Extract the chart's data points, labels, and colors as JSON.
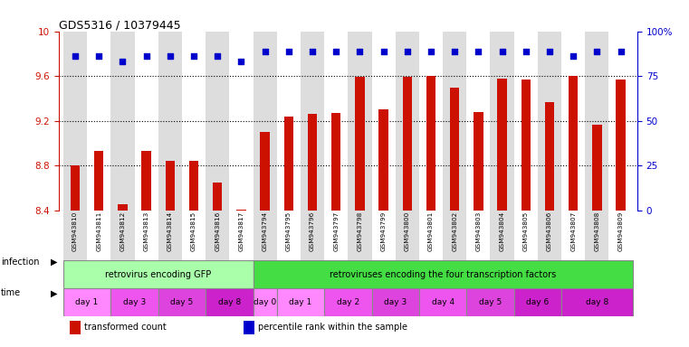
{
  "title": "GDS5316 / 10379445",
  "samples": [
    "GSM943810",
    "GSM943811",
    "GSM943812",
    "GSM943813",
    "GSM943814",
    "GSM943815",
    "GSM943816",
    "GSM943817",
    "GSM943794",
    "GSM943795",
    "GSM943796",
    "GSM943797",
    "GSM943798",
    "GSM943799",
    "GSM943800",
    "GSM943801",
    "GSM943802",
    "GSM943803",
    "GSM943804",
    "GSM943805",
    "GSM943806",
    "GSM943807",
    "GSM943808",
    "GSM943809"
  ],
  "transformed_count": [
    8.8,
    8.93,
    8.46,
    8.93,
    8.84,
    8.84,
    8.65,
    8.41,
    9.1,
    9.24,
    9.26,
    9.27,
    9.59,
    9.3,
    9.59,
    9.6,
    9.5,
    9.28,
    9.58,
    9.57,
    9.37,
    9.6,
    9.17,
    9.57
  ],
  "percentile_left_y": [
    9.78,
    9.78,
    9.73,
    9.78,
    9.78,
    9.78,
    9.78,
    9.73,
    9.82,
    9.82,
    9.82,
    9.82,
    9.82,
    9.82,
    9.82,
    9.82,
    9.82,
    9.82,
    9.82,
    9.82,
    9.82,
    9.78,
    9.82,
    9.82
  ],
  "ylim_left": [
    8.4,
    10.0
  ],
  "ylim_right": [
    0,
    100
  ],
  "yticks_left": [
    8.4,
    8.8,
    9.2,
    9.6,
    10.0
  ],
  "ytick_labels_left": [
    "8.4",
    "8.8",
    "9.2",
    "9.6",
    "10"
  ],
  "yticks_right": [
    0,
    25,
    50,
    75,
    100
  ],
  "ytick_labels_right": [
    "0",
    "25",
    "50",
    "75",
    "100%"
  ],
  "bar_color": "#cc1100",
  "dot_color": "#0000cc",
  "bg_color": "#ffffff",
  "grid_lines": [
    8.8,
    9.2,
    9.6
  ],
  "infection_groups": [
    {
      "label": "retrovirus encoding GFP",
      "start": 0,
      "end": 8,
      "color": "#aaffaa"
    },
    {
      "label": "retroviruses encoding the four transcription factors",
      "start": 8,
      "end": 24,
      "color": "#44dd44"
    }
  ],
  "time_groups": [
    {
      "label": "day 1",
      "start": 0,
      "end": 2,
      "color": "#ff88ff"
    },
    {
      "label": "day 3",
      "start": 2,
      "end": 4,
      "color": "#ee55ee"
    },
    {
      "label": "day 5",
      "start": 4,
      "end": 6,
      "color": "#dd44dd"
    },
    {
      "label": "day 8",
      "start": 6,
      "end": 8,
      "color": "#cc22cc"
    },
    {
      "label": "day 0",
      "start": 8,
      "end": 9,
      "color": "#ff88ff"
    },
    {
      "label": "day 1",
      "start": 9,
      "end": 11,
      "color": "#ff88ff"
    },
    {
      "label": "day 2",
      "start": 11,
      "end": 13,
      "color": "#ee55ee"
    },
    {
      "label": "day 3",
      "start": 13,
      "end": 15,
      "color": "#dd44dd"
    },
    {
      "label": "day 4",
      "start": 15,
      "end": 17,
      "color": "#ee55ee"
    },
    {
      "label": "day 5",
      "start": 17,
      "end": 19,
      "color": "#dd44dd"
    },
    {
      "label": "day 6",
      "start": 19,
      "end": 21,
      "color": "#cc22cc"
    },
    {
      "label": "day 8",
      "start": 21,
      "end": 24,
      "color": "#cc22cc"
    }
  ],
  "xtick_bg_colors": [
    "#dddddd",
    "#ffffff",
    "#dddddd",
    "#ffffff",
    "#dddddd",
    "#ffffff",
    "#dddddd",
    "#ffffff",
    "#dddddd",
    "#ffffff",
    "#dddddd",
    "#ffffff",
    "#dddddd",
    "#ffffff",
    "#dddddd",
    "#ffffff",
    "#dddddd",
    "#ffffff",
    "#dddddd",
    "#ffffff",
    "#dddddd",
    "#ffffff",
    "#dddddd",
    "#ffffff"
  ]
}
